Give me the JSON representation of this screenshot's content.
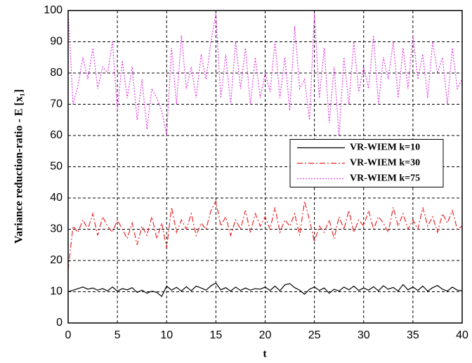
{
  "chart_data": {
    "type": "line",
    "xlabel": "t",
    "ylabel": "Variance reduction-ratio - E [x₁]",
    "x": [
      0,
      0.5,
      1,
      1.5,
      2,
      2.5,
      3,
      3.5,
      4,
      4.5,
      5,
      5.5,
      6,
      6.5,
      7,
      7.5,
      8,
      8.5,
      9,
      9.5,
      10,
      10.5,
      11,
      11.5,
      12,
      12.5,
      13,
      13.5,
      14,
      14.5,
      15,
      15.5,
      16,
      16.5,
      17,
      17.5,
      18,
      18.5,
      19,
      19.5,
      20,
      20.5,
      21,
      21.5,
      22,
      22.5,
      23,
      23.5,
      24,
      24.5,
      25,
      25.5,
      26,
      26.5,
      27,
      27.5,
      28,
      28.5,
      29,
      29.5,
      30,
      30.5,
      31,
      31.5,
      32,
      32.5,
      33,
      33.5,
      34,
      34.5,
      35,
      35.5,
      36,
      36.5,
      37,
      37.5,
      38,
      38.5,
      39,
      39.5,
      40
    ],
    "series": [
      {
        "name": "VR-WIEM k=10",
        "color": "#000000",
        "line_style": "solid",
        "values": [
          10,
          10.5,
          11,
          11.5,
          10.8,
          11.2,
          10.5,
          11,
          10.3,
          11.5,
          10.2,
          11,
          10.6,
          11.3,
          9.8,
          10.5,
          9.5,
          10.2,
          9.8,
          8.5,
          11.8,
          10.5,
          11.4,
          10.2,
          11.6,
          10.3,
          11.8,
          11.2,
          10.5,
          11.9,
          12.8,
          10.6,
          11.3,
          10.2,
          11.5,
          10.4,
          11.2,
          10.5,
          11,
          10.8,
          11.5,
          10.4,
          11.8,
          10.3,
          12.2,
          12.6,
          11.3,
          10.5,
          9.2,
          10.8,
          11.5,
          10.4,
          11.2,
          9.5,
          10.8,
          10.2,
          11.5,
          10.6,
          11.8,
          10.4,
          11.2,
          10.5,
          11.6,
          10.3,
          11.9,
          10.8,
          11.4,
          10.2,
          12.3,
          10.6,
          11.5,
          10.4,
          11.8,
          10.2,
          11.3,
          12,
          10.8,
          10.2,
          11.5,
          10.5,
          10.3
        ]
      },
      {
        "name": "VR-WIEM k=30",
        "color": "#e8262a",
        "line_style": "dashdot",
        "values": [
          17,
          31,
          29,
          33,
          30,
          35,
          28,
          34,
          31,
          29,
          33,
          30,
          27,
          32,
          25,
          31,
          28,
          34,
          27,
          32,
          24,
          37,
          29,
          33,
          30,
          35,
          28,
          32,
          30,
          36,
          39,
          31,
          34,
          28,
          33,
          30,
          36,
          29,
          35,
          31,
          34,
          30,
          37,
          29,
          33,
          31,
          35,
          28,
          39,
          33,
          26,
          31,
          29,
          33,
          27,
          34,
          30,
          36,
          29,
          33,
          31,
          36,
          30,
          34,
          32,
          29,
          37,
          31,
          35,
          30,
          33,
          30,
          37,
          31,
          34,
          29,
          35,
          32,
          36,
          30,
          31
        ]
      },
      {
        "name": "VR-WIEM k=75",
        "color": "#e040e0",
        "line_style": "dotted",
        "values": [
          100,
          70,
          76,
          85,
          78,
          88,
          75,
          82,
          80,
          90,
          68,
          84,
          72,
          82,
          65,
          78,
          62,
          75,
          72,
          68,
          60,
          88,
          70,
          92,
          75,
          82,
          72,
          86,
          78,
          90,
          99,
          72,
          86,
          70,
          90,
          75,
          88,
          70,
          85,
          72,
          80,
          74,
          90,
          72,
          85,
          68,
          95,
          75,
          78,
          65,
          99,
          72,
          88,
          64,
          82,
          60,
          85,
          70,
          90,
          74,
          82,
          75,
          92,
          70,
          85,
          78,
          90,
          72,
          88,
          75,
          92,
          78,
          86,
          72,
          90,
          80,
          85,
          70,
          88,
          75,
          78
        ]
      }
    ],
    "xlim": [
      0,
      40
    ],
    "xticks": [
      0,
      5,
      10,
      15,
      20,
      25,
      30,
      35,
      40
    ],
    "ylim": [
      0,
      100
    ],
    "yticks": [
      0,
      10,
      20,
      30,
      40,
      50,
      60,
      70,
      80,
      90,
      100
    ],
    "grid": true,
    "legend": "right"
  }
}
